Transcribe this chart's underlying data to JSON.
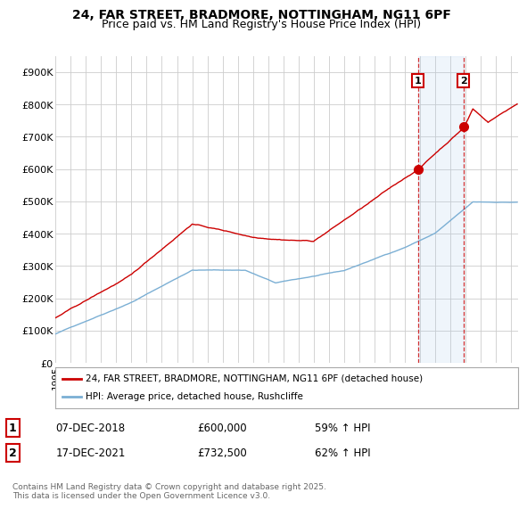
{
  "title_line1": "24, FAR STREET, BRADMORE, NOTTINGHAM, NG11 6PF",
  "title_line2": "Price paid vs. HM Land Registry's House Price Index (HPI)",
  "ylim": [
    0,
    950000
  ],
  "yticks": [
    0,
    100000,
    200000,
    300000,
    400000,
    500000,
    600000,
    700000,
    800000,
    900000
  ],
  "ytick_labels": [
    "£0",
    "£100K",
    "£200K",
    "£300K",
    "£400K",
    "£500K",
    "£600K",
    "£700K",
    "£800K",
    "£900K"
  ],
  "line1_color": "#cc0000",
  "line2_color": "#7bafd4",
  "sale1_year": 2018.917,
  "sale1_price": 600000,
  "sale2_year": 2021.917,
  "sale2_price": 732500,
  "legend_label1": "24, FAR STREET, BRADMORE, NOTTINGHAM, NG11 6PF (detached house)",
  "legend_label2": "HPI: Average price, detached house, Rushcliffe",
  "annotation1_date": "07-DEC-2018",
  "annotation1_price": "£600,000",
  "annotation1_hpi": "59% ↑ HPI",
  "annotation2_date": "17-DEC-2021",
  "annotation2_price": "£732,500",
  "annotation2_hpi": "62% ↑ HPI",
  "footer": "Contains HM Land Registry data © Crown copyright and database right 2025.\nThis data is licensed under the Open Government Licence v3.0.",
  "background_color": "#ffffff",
  "grid_color": "#cccccc",
  "xstart": 1995,
  "xend": 2025.5
}
